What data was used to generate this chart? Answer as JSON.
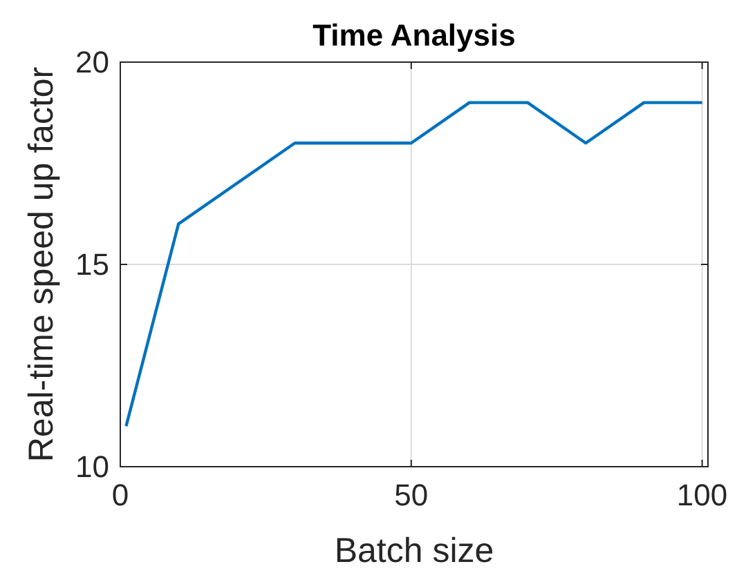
{
  "chart_data": {
    "type": "line",
    "title": "Time Analysis",
    "xlabel": "Batch size",
    "ylabel": "Real-time speed up factor",
    "x": [
      1,
      10,
      20,
      30,
      40,
      50,
      60,
      70,
      80,
      90,
      100
    ],
    "series": [
      {
        "color": "#0072bd",
        "values": [
          11,
          16,
          17,
          18,
          18,
          18,
          19,
          19,
          18,
          19,
          19
        ]
      }
    ],
    "xlim": [
      0,
      101
    ],
    "xticks": [
      0,
      50,
      100
    ],
    "ylim": [
      10,
      20
    ],
    "yticks": [
      10,
      15,
      20
    ],
    "grid": true,
    "marker": "none",
    "line_style": "solid"
  }
}
